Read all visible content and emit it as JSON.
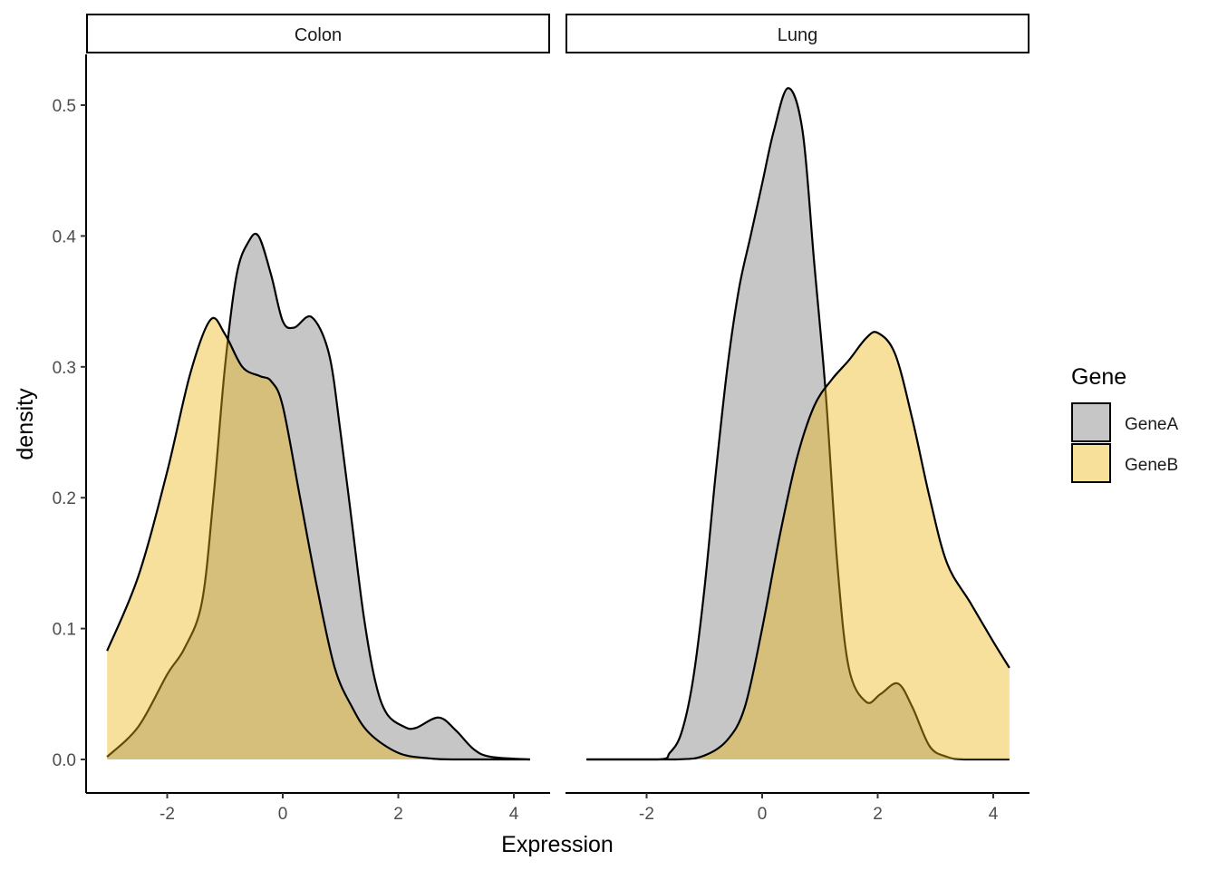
{
  "chart_data": {
    "type": "area",
    "subtype": "density",
    "xlabel": "Expression",
    "ylabel": "density",
    "xlim": [
      -3.4,
      4.6
    ],
    "ylim": [
      -0.025,
      0.54
    ],
    "x_ticks": [
      -2,
      0,
      2,
      4
    ],
    "x_tick_labels": [
      "-2",
      "0",
      "2",
      "4"
    ],
    "y_ticks": [
      0.0,
      0.1,
      0.2,
      0.3,
      0.4,
      0.5
    ],
    "y_tick_labels": [
      "0.0",
      "0.1",
      "0.2",
      "0.3",
      "0.4",
      "0.5"
    ],
    "legend": {
      "title": "Gene",
      "position": "right",
      "entries": [
        "GeneA",
        "GeneB"
      ]
    },
    "colors": {
      "GeneA": "#c6c6c6",
      "GeneB": "#ecb510",
      "GeneB_opacity": 0.42
    },
    "panels": [
      {
        "title": "Colon",
        "series": [
          {
            "name": "GeneA",
            "x": [
              -3.04,
              -2.5,
              -2.0,
              -1.7,
              -1.4,
              -1.2,
              -1.0,
              -0.8,
              -0.6,
              -0.42,
              -0.2,
              0.0,
              0.2,
              0.5,
              0.8,
              1.0,
              1.2,
              1.4,
              1.6,
              1.8,
              2.1,
              2.3,
              2.7,
              3.0,
              3.3,
              3.6,
              4.28
            ],
            "y": [
              0.002,
              0.025,
              0.065,
              0.085,
              0.12,
              0.2,
              0.3,
              0.37,
              0.395,
              0.4,
              0.37,
              0.335,
              0.33,
              0.338,
              0.31,
              0.25,
              0.18,
              0.11,
              0.06,
              0.035,
              0.025,
              0.024,
              0.032,
              0.022,
              0.008,
              0.002,
              0.0
            ]
          },
          {
            "name": "GeneB",
            "x": [
              -3.04,
              -2.5,
              -2.0,
              -1.6,
              -1.25,
              -1.0,
              -0.7,
              -0.4,
              -0.2,
              0.0,
              0.3,
              0.6,
              0.9,
              1.2,
              1.5,
              2.0,
              2.5,
              3.0,
              4.28
            ],
            "y": [
              0.083,
              0.14,
              0.22,
              0.295,
              0.336,
              0.325,
              0.3,
              0.293,
              0.289,
              0.27,
              0.2,
              0.13,
              0.07,
              0.04,
              0.02,
              0.005,
              0.001,
              0.0,
              0.0
            ]
          }
        ]
      },
      {
        "title": "Lung",
        "series": [
          {
            "name": "GeneA",
            "x": [
              -3.04,
              -1.8,
              -1.6,
              -1.4,
              -1.2,
              -1.0,
              -0.8,
              -0.6,
              -0.4,
              -0.2,
              0.0,
              0.2,
              0.45,
              0.7,
              0.9,
              1.1,
              1.3,
              1.5,
              1.8,
              2.05,
              2.35,
              2.6,
              2.9,
              3.2,
              3.5,
              4.28
            ],
            "y": [
              0.0,
              0.0,
              0.005,
              0.02,
              0.06,
              0.13,
              0.22,
              0.3,
              0.36,
              0.4,
              0.44,
              0.48,
              0.513,
              0.48,
              0.38,
              0.28,
              0.15,
              0.07,
              0.044,
              0.05,
              0.058,
              0.04,
              0.01,
              0.002,
              0.0,
              0.0
            ]
          },
          {
            "name": "GeneB",
            "x": [
              -3.04,
              -1.5,
              -1.0,
              -0.6,
              -0.3,
              0.0,
              0.3,
              0.6,
              0.9,
              1.2,
              1.5,
              1.8,
              2.0,
              2.3,
              2.6,
              2.9,
              3.2,
              3.6,
              4.0,
              4.28
            ],
            "y": [
              0.0,
              0.0,
              0.003,
              0.015,
              0.04,
              0.1,
              0.17,
              0.23,
              0.27,
              0.29,
              0.305,
              0.322,
              0.326,
              0.31,
              0.26,
              0.2,
              0.15,
              0.12,
              0.09,
              0.07
            ]
          }
        ]
      }
    ]
  }
}
